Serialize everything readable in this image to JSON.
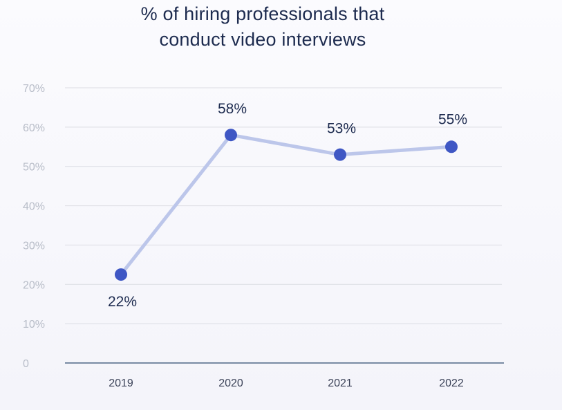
{
  "chart_data": {
    "type": "line",
    "title_lines": [
      "% of hiring professionals that",
      "conduct video interviews"
    ],
    "categories": [
      "2019",
      "2020",
      "2021",
      "2022"
    ],
    "values": [
      22.5,
      58,
      53,
      55
    ],
    "data_labels": [
      "22%",
      "58%",
      "53%",
      "55%"
    ],
    "y_ticks": [
      {
        "value": 0,
        "label": "0"
      },
      {
        "value": 10,
        "label": "10%"
      },
      {
        "value": 20,
        "label": "20%"
      },
      {
        "value": 30,
        "label": "30%"
      },
      {
        "value": 40,
        "label": "40%"
      },
      {
        "value": 50,
        "label": "50%"
      },
      {
        "value": 60,
        "label": "60%"
      },
      {
        "value": 70,
        "label": "70%"
      }
    ],
    "ylim": [
      0,
      70
    ],
    "grid": true,
    "colors": {
      "line": "#bcc6ea",
      "point": "#3f57c4",
      "grid": "#dcdde3",
      "axis": "#2f4a6f"
    }
  }
}
